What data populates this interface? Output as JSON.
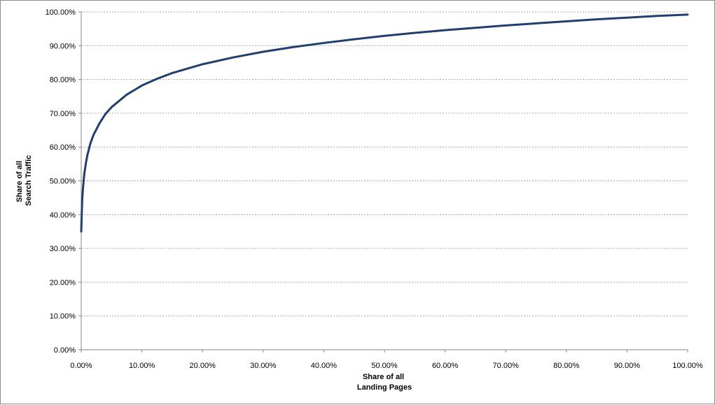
{
  "chart_data": {
    "type": "line",
    "title": "",
    "xlabel": [
      "Share of all",
      "Landing Pages"
    ],
    "ylabel": [
      "Share of all",
      "Search Traffic"
    ],
    "xlim": [
      0,
      100
    ],
    "ylim": [
      0,
      100
    ],
    "x_ticks": [
      "0.00%",
      "10.00%",
      "20.00%",
      "30.00%",
      "40.00%",
      "50.00%",
      "60.00%",
      "70.00%",
      "80.00%",
      "90.00%",
      "100.00%"
    ],
    "y_ticks": [
      "0.00%",
      "10.00%",
      "20.00%",
      "30.00%",
      "40.00%",
      "50.00%",
      "60.00%",
      "70.00%",
      "80.00%",
      "90.00%",
      "100.00%"
    ],
    "grid": "horizontal dashed",
    "legend": "none",
    "line_color": "#1f3f6e",
    "series": [
      {
        "x": [
          0.0,
          0.15,
          0.3,
          0.5,
          0.75,
          1,
          1.5,
          2,
          3,
          4,
          5,
          7.5,
          10,
          12.5,
          15,
          20,
          25,
          30,
          35,
          40,
          45,
          50,
          55,
          60,
          65,
          70,
          75,
          80,
          85,
          90,
          95,
          100
        ],
        "values": [
          35.0,
          44.0,
          48.0,
          52.0,
          55.0,
          57.5,
          61.0,
          63.5,
          67.0,
          69.8,
          71.8,
          75.5,
          78.2,
          80.2,
          81.9,
          84.5,
          86.5,
          88.2,
          89.6,
          90.8,
          91.9,
          92.9,
          93.8,
          94.6,
          95.3,
          96.0,
          96.6,
          97.2,
          97.8,
          98.3,
          98.8,
          99.2
        ]
      }
    ]
  }
}
